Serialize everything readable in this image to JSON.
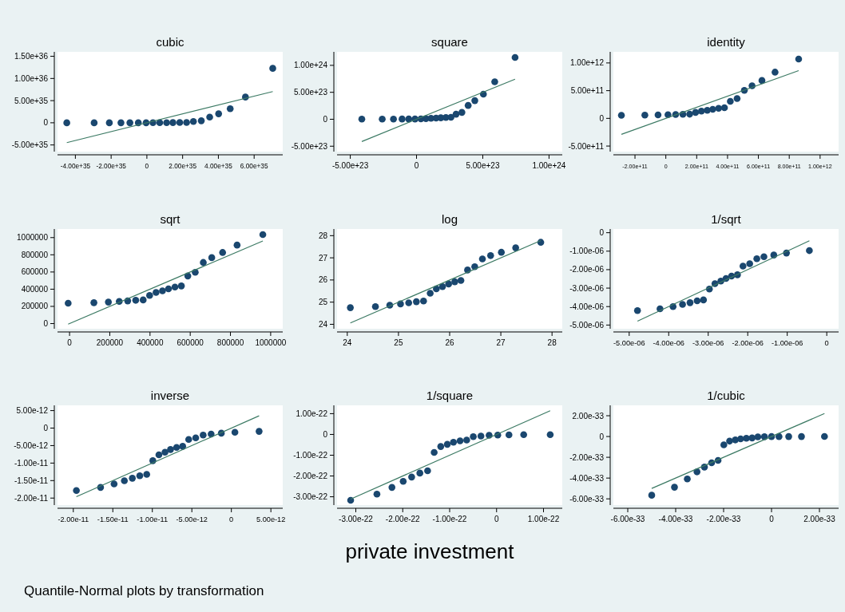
{
  "chart_data": [
    {
      "type": "scatter",
      "title": "cubic",
      "marker": "circle",
      "xlim": [
        -5e+35,
        7.6e+35
      ],
      "ylim": [
        -6.5e+35,
        1.6e+36
      ],
      "xticks": [
        {
          "value": -4e+35,
          "label": "-4.00e+35"
        },
        {
          "value": -2e+35,
          "label": "-2.00e+35"
        },
        0,
        {
          "value": 2e+35,
          "label": "2.00e+35"
        },
        {
          "value": 4e+35,
          "label": "4.00e+35"
        },
        {
          "value": 6e+35,
          "label": "6.00e+35"
        }
      ],
      "yticks": [
        {
          "value": -5e+35,
          "label": "-5.00e+35"
        },
        0,
        {
          "value": 5e+35,
          "label": "5.00e+35"
        },
        {
          "value": 1e+36,
          "label": "1.00e+36"
        },
        {
          "value": 1.5e+36,
          "label": "1.50e+36"
        }
      ],
      "series": [
        {
          "type": "scatter",
          "color": "#1a476f",
          "x": [
            -4.48e+35,
            -2.95e+35,
            -2.1e+35,
            -1.45e+35,
            -9.5e+34,
            -4.8e+34,
            -4.3e+33,
            3.39e+34,
            7.21e+34,
            1.104e+35,
            1.456e+35,
            1.839e+35,
            2.221e+35,
            2.603e+35,
            3.044e+35,
            3.514e+35,
            4.014e+35,
            4.661e+35,
            5.514e+35,
            7.042e+35
          ],
          "values": [
            1.77e+32,
            2.05e+32,
            2.45e+32,
            2.94e+32,
            3.4e+32,
            3.95e+32,
            4.34e+32,
            1.239e+33,
            2.258e+33,
            3.049e+33,
            4.363e+33,
            5.891e+33,
            7.056e+33,
            2.891e+34,
            4.535e+34,
            1.296e+35,
            2.033e+35,
            3.187e+35,
            5.801e+35,
            1.2285e+36
          ]
        },
        {
          "type": "line",
          "color": "#3c7a64",
          "marker": "none",
          "x": [
            -4.48e+35,
            7.042e+35
          ],
          "values": [
            -4.48e+35,
            7.042e+35
          ]
        }
      ]
    },
    {
      "type": "scatter",
      "title": "square",
      "marker": "circle",
      "xlim": [
        -6e+23,
        1.1e+24
      ],
      "ylim": [
        -6e+23,
        1.25e+24
      ],
      "xticks": [
        {
          "value": -5e+23,
          "label": "-5.00e+23"
        },
        0,
        {
          "value": 5e+23,
          "label": "5.00e+23"
        },
        {
          "value": 1e+24,
          "label": "1.00e+24"
        }
      ],
      "yticks": [
        {
          "value": -5e+23,
          "label": "-5.00e+23"
        },
        0,
        {
          "value": 5e+23,
          "label": "5.00e+23"
        },
        {
          "value": 1e+24,
          "label": "1.00e+24"
        }
      ],
      "series": [
        {
          "type": "scatter",
          "color": "#1a476f",
          "x": [
            -4.13e+23,
            -2.59e+23,
            -1.74e+23,
            -1.09e+23,
            -5.87e+22,
            -1.15e+22,
            3.28e+22,
            7.11e+22,
            1.095e+23,
            1.478e+23,
            1.832e+23,
            2.216e+23,
            2.599e+23,
            2.983e+23,
            3.425e+23,
            3.897e+23,
            4.399e+23,
            5.048e+23,
            5.903e+23,
            7.437e+23
          ],
          "values": [
            3.15e+21,
            3.48e+21,
            3.92e+21,
            4.42e+21,
            4.87e+21,
            5.39e+21,
            5.73e+21,
            1.153e+22,
            1.721e+22,
            2.103e+22,
            2.67e+22,
            3.262e+22,
            3.679e+22,
            9.419e+22,
            1.2716e+23,
            2.5614e+23,
            3.4574e+23,
            4.6663e+23,
            6.956e+23,
            1.147e+24
          ]
        },
        {
          "type": "line",
          "color": "#3c7a64",
          "marker": "none",
          "x": [
            -4.13e+23,
            7.437e+23
          ],
          "values": [
            -4.13e+23,
            7.437e+23
          ]
        }
      ]
    },
    {
      "type": "scatter",
      "title": "identity",
      "marker": "circle",
      "xlim": [
        -340000000000.0,
        1120000000000.0
      ],
      "ylim": [
        -600000000000.0,
        1200000000000.0
      ],
      "xticks": [
        {
          "value": -200000000000.0,
          "label": "-2.00e+11"
        },
        0,
        {
          "value": 200000000000.0,
          "label": "2.00e+11"
        },
        {
          "value": 400000000000.0,
          "label": "4.00e+11"
        },
        {
          "value": 600000000000.0,
          "label": "6.00e+11"
        },
        {
          "value": 800000000000.0,
          "label": "8.00e+11"
        },
        {
          "value": 1000000000000.0,
          "label": "1.00e+12"
        }
      ],
      "yticks": [
        {
          "value": -500000000000.0,
          "label": "-5.00e+11"
        },
        0,
        {
          "value": 500000000000.0,
          "label": "5.00e+11"
        },
        {
          "value": 1000000000000.0,
          "label": "1.00e+12"
        }
      ],
      "series": [
        {
          "type": "scatter",
          "color": "#1a476f",
          "x": [
            -288000000000.0,
            -136000000000.0,
            -50500000000.0,
            13900000000.0,
            63700000000.0,
            110600000000.0,
            154600000000.0,
            192600000000.0,
            230700000000.0,
            268800000000.0,
            304000000000.0,
            342000000000.0,
            380000000000.0,
            418000000000.0,
            462000000000.0,
            509000000000.0,
            559000000000.0,
            623000000000.0,
            708000000000.0,
            861000000000.0
          ],
          "values": [
            56100000000.0,
            59000000000.0,
            62600000000.0,
            66500000000.0,
            69800000000.0,
            73400000000.0,
            75700000000.0,
            107400000000.0,
            131200000000.0,
            145000000000.0,
            163400000000.0,
            180600000000.0,
            191800000000.0,
            306900000000.0,
            356600000000.0,
            506100000000.0,
            588000000000.0,
            683100000000.0,
            834000000000.0,
            1071000000000.0
          ]
        },
        {
          "type": "line",
          "color": "#3c7a64",
          "marker": "none",
          "x": [
            -288000000000.0,
            861000000000.0
          ],
          "values": [
            -288000000000.0,
            861000000000.0
          ]
        }
      ]
    },
    {
      "type": "scatter",
      "title": "sqrt",
      "marker": "circle",
      "xlim": [
        -60000,
        1060000
      ],
      "ylim": [
        -60000,
        1100000
      ],
      "xticks": [
        0,
        200000,
        400000,
        600000,
        800000,
        1000000
      ],
      "yticks": [
        0,
        200000,
        400000,
        600000,
        800000,
        1000000
      ],
      "series": [
        {
          "type": "scatter",
          "color": "#1a476f",
          "x": [
            -7000,
            121000,
            193000,
            247000,
            289000,
            329000,
            366000,
            398000,
            430000,
            462000,
            492000,
            524000,
            556000,
            588000,
            625000,
            665000,
            707000,
            761000,
            833000,
            961000
          ],
          "values": [
            237000,
            243000,
            250000,
            258000,
            264000,
            271000,
            275000,
            328000,
            362000,
            381000,
            404000,
            425000,
            438000,
            554000,
            597000,
            711000,
            767000,
            827000,
            913000,
            1035000
          ]
        },
        {
          "type": "line",
          "color": "#3c7a64",
          "marker": "none",
          "x": [
            -7000,
            961000
          ],
          "values": [
            -7000,
            961000
          ]
        }
      ]
    },
    {
      "type": "scatter",
      "title": "log",
      "marker": "circle",
      "xlim": [
        23.8,
        28.2
      ],
      "ylim": [
        23.8,
        28.3
      ],
      "xticks": [
        24,
        25,
        26,
        27,
        28
      ],
      "yticks": [
        24,
        25,
        26,
        27,
        28
      ],
      "series": [
        {
          "type": "scatter",
          "color": "#1a476f",
          "x": [
            24.06,
            24.55,
            24.83,
            25.04,
            25.2,
            25.35,
            25.49,
            25.62,
            25.74,
            25.86,
            25.98,
            26.1,
            26.22,
            26.35,
            26.49,
            26.64,
            26.8,
            27.01,
            27.29,
            27.78
          ],
          "values": [
            24.75,
            24.8,
            24.86,
            24.92,
            24.97,
            25.02,
            25.05,
            25.4,
            25.6,
            25.7,
            25.82,
            25.92,
            25.98,
            26.45,
            26.6,
            26.95,
            27.1,
            27.25,
            27.45,
            27.7
          ]
        },
        {
          "type": "line",
          "color": "#3c7a64",
          "marker": "none",
          "x": [
            24.06,
            27.78
          ],
          "values": [
            24.06,
            27.78
          ]
        }
      ]
    },
    {
      "type": "scatter",
      "title": "1/sqrt",
      "marker": "circle",
      "xlim": [
        -5.4e-06,
        3e-07
      ],
      "ylim": [
        -5.2e-06,
        2e-07
      ],
      "xticks": [
        {
          "value": -5e-06,
          "label": "-5.00e-06"
        },
        {
          "value": -4e-06,
          "label": "-4.00e-06"
        },
        {
          "value": -3e-06,
          "label": "-3.00e-06"
        },
        {
          "value": -2e-06,
          "label": "-2.00e-06"
        },
        {
          "value": -1e-06,
          "label": "-1.00e-06"
        },
        0
      ],
      "yticks": [
        {
          "value": -5e-06,
          "label": "-5.00e-06"
        },
        {
          "value": -4e-06,
          "label": "-4.00e-06"
        },
        {
          "value": -3e-06,
          "label": "-3.00e-06"
        },
        {
          "value": -2e-06,
          "label": "-2.00e-06"
        },
        {
          "value": -1e-06,
          "label": "-1.00e-06"
        },
        0
      ],
      "series": [
        {
          "type": "scatter",
          "color": "#1a476f",
          "x": [
            -4.79e-06,
            -4.22e-06,
            -3.89e-06,
            -3.65e-06,
            -3.46e-06,
            -3.28e-06,
            -3.12e-06,
            -2.97e-06,
            -2.83e-06,
            -2.68e-06,
            -2.55e-06,
            -2.41e-06,
            -2.26e-06,
            -2.12e-06,
            -1.95e-06,
            -1.77e-06,
            -1.59e-06,
            -1.34e-06,
            -1.02e-06,
            -4.4e-07
          ],
          "values": [
            -4.22e-06,
            -4.12e-06,
            -4e-06,
            -3.88e-06,
            -3.79e-06,
            -3.69e-06,
            -3.64e-06,
            -3.05e-06,
            -2.76e-06,
            -2.62e-06,
            -2.48e-06,
            -2.35e-06,
            -2.28e-06,
            -1.81e-06,
            -1.68e-06,
            -1.41e-06,
            -1.3e-06,
            -1.21e-06,
            -1.1e-06,
            -9.7e-07
          ]
        },
        {
          "type": "line",
          "color": "#3c7a64",
          "marker": "none",
          "x": [
            -4.79e-06,
            -4.4e-07
          ],
          "values": [
            -4.79e-06,
            -4.4e-07
          ]
        }
      ]
    },
    {
      "type": "scatter",
      "title": "inverse",
      "marker": "circle",
      "xlim": [
        -2.2e-11,
        6.5e-12
      ],
      "ylim": [
        -2.2e-11,
        6.5e-12
      ],
      "xticks": [
        {
          "value": -2e-11,
          "label": "-2.00e-11"
        },
        {
          "value": -1.5e-11,
          "label": "-1.50e-11"
        },
        {
          "value": -1e-11,
          "label": "-1.00e-11"
        },
        {
          "value": -5e-12,
          "label": "-5.00e-12"
        },
        0,
        {
          "value": 5e-12,
          "label": "5.00e-12"
        }
      ],
      "yticks": [
        {
          "value": -2e-11,
          "label": "-2.00e-11"
        },
        {
          "value": -1.5e-11,
          "label": "-1.50e-11"
        },
        {
          "value": -1e-11,
          "label": "-1.00e-11"
        },
        {
          "value": -5e-12,
          "label": "-5.00e-12"
        },
        0,
        {
          "value": 5e-12,
          "label": "5.00e-12"
        }
      ],
      "series": [
        {
          "type": "scatter",
          "color": "#1a476f",
          "x": [
            -1.961e-11,
            -1.655e-11,
            -1.484e-11,
            -1.354e-11,
            -1.253e-11,
            -1.159e-11,
            -1.071e-11,
            -9.94e-12,
            -9.17e-12,
            -8.4e-12,
            -7.7e-12,
            -6.93e-12,
            -6.16e-12,
            -5.4e-12,
            -4.51e-12,
            -3.57e-12,
            -2.56e-12,
            -1.27e-12,
            4.5e-13,
            3.51e-12
          ],
          "values": [
            -1.783e-11,
            -1.695e-11,
            -1.597e-11,
            -1.504e-11,
            -1.433e-11,
            -1.362e-11,
            -1.321e-11,
            -9.31e-12,
            -7.62e-12,
            -6.9e-12,
            -6.12e-12,
            -5.54e-12,
            -5.21e-12,
            -3.26e-12,
            -2.8e-12,
            -1.98e-12,
            -1.7e-12,
            -1.46e-12,
            -1.2e-12,
            -9.3e-13
          ]
        },
        {
          "type": "line",
          "color": "#3c7a64",
          "marker": "none",
          "x": [
            -1.961e-11,
            3.51e-12
          ],
          "values": [
            -1.961e-11,
            3.51e-12
          ]
        }
      ]
    },
    {
      "type": "scatter",
      "title": "1/square",
      "xlabel": "private investment",
      "annotations": [
        "Quantile-Normal plots by transformation"
      ],
      "marker": "circle",
      "xlim": [
        -3.4e-22,
        1.4e-22
      ],
      "ylim": [
        -3.4e-22,
        1.4e-22
      ],
      "xticks": [
        {
          "value": -3e-22,
          "label": "-3.00e-22"
        },
        {
          "value": -2e-22,
          "label": "-2.00e-22"
        },
        {
          "value": -1e-22,
          "label": "-1.00e-22"
        },
        0,
        {
          "value": 1e-22,
          "label": "1.00e-22"
        }
      ],
      "yticks": [
        {
          "value": -3e-22,
          "label": "-3.00e-22"
        },
        {
          "value": -2e-22,
          "label": "-2.00e-22"
        },
        {
          "value": -1e-22,
          "label": "-1.00e-22"
        },
        0,
        {
          "value": 1e-22,
          "label": "1.00e-22"
        }
      ],
      "series": [
        {
          "type": "scatter",
          "color": "#1a476f",
          "x": [
            -3.11e-22,
            -2.55e-22,
            -2.23e-22,
            -1.99e-22,
            -1.81e-22,
            -1.635e-22,
            -1.47e-22,
            -1.33e-22,
            -1.19e-22,
            -1.05e-22,
            -9.19e-23,
            -7.78e-23,
            -6.37e-23,
            -4.96e-23,
            -3.33e-23,
            -1.59e-23,
            2.5e-24,
            2.64e-23,
            5.78e-23,
            1.143e-22
          ],
          "values": [
            -3.17e-22,
            -2.87e-22,
            -2.55e-22,
            -2.26e-22,
            -2.05e-22,
            -1.86e-22,
            -1.75e-22,
            -8.67e-23,
            -5.81e-23,
            -4.76e-23,
            -3.75e-23,
            -3.07e-23,
            -2.72e-23,
            -1.06e-23,
            -7.9e-24,
            -3.9e-24,
            -2.9e-24,
            -2.1e-24,
            -1.4e-24,
            -9e-25
          ]
        },
        {
          "type": "line",
          "color": "#3c7a64",
          "marker": "none",
          "x": [
            -3.11e-22,
            1.143e-22
          ],
          "values": [
            -3.11e-22,
            1.143e-22
          ]
        }
      ]
    },
    {
      "type": "scatter",
      "title": "1/cubic",
      "marker": "circle",
      "xlim": [
        -6.6e-33,
        2.8e-33
      ],
      "ylim": [
        -6.6e-33,
        3e-33
      ],
      "xticks": [
        {
          "value": -6e-33,
          "label": "-6.00e-33"
        },
        {
          "value": -4e-33,
          "label": "-4.00e-33"
        },
        {
          "value": -2e-33,
          "label": "-2.00e-33"
        },
        0,
        {
          "value": 2e-33,
          "label": "2.00e-33"
        }
      ],
      "yticks": [
        {
          "value": -6e-33,
          "label": "-6.00e-33"
        },
        {
          "value": -4e-33,
          "label": "-4.00e-33"
        },
        {
          "value": -2e-33,
          "label": "-2.00e-33"
        },
        0,
        {
          "value": 2e-33,
          "label": "2.00e-33"
        }
      ],
      "series": [
        {
          "type": "scatter",
          "color": "#1a476f",
          "x": [
            -5e-33,
            -4.05e-33,
            -3.515e-33,
            -3.11e-33,
            -2.8e-33,
            -2.5e-33,
            -2.23e-33,
            -1.99e-33,
            -1.75e-33,
            -1.51e-33,
            -1.29e-33,
            -1.05e-33,
            -8.1e-34,
            -5.7e-34,
            -2.95e-34,
            0,
            3.12e-34,
            7.17e-34,
            1.25e-33,
            2.21e-33
          ],
          "values": [
            -5.65e-33,
            -4.88e-33,
            -4.08e-33,
            -3.4e-33,
            -2.94e-33,
            -2.53e-33,
            -2.3e-33,
            -8.07e-34,
            -4.43e-34,
            -3.28e-34,
            -2.29e-34,
            -1.7e-34,
            -1.42e-34,
            -3.5e-35,
            -2.2e-35,
            -7.7e-36,
            -4.9e-36,
            -3.1e-36,
            -1.7e-36,
            -8e-37
          ]
        },
        {
          "type": "line",
          "color": "#3c7a64",
          "marker": "none",
          "x": [
            -5e-33,
            2.21e-33
          ],
          "values": [
            -5e-33,
            2.21e-33
          ]
        }
      ]
    }
  ]
}
